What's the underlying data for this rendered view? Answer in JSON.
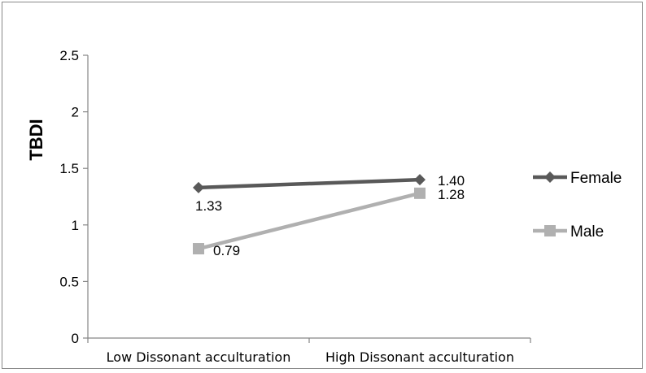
{
  "chart_data": {
    "type": "line",
    "title": "",
    "xlabel": "",
    "ylabel": "TBDI",
    "categories": [
      "Low Dissonant acculturation",
      "High Dissonant acculturation"
    ],
    "yticks": [
      "0",
      "0.5",
      "1",
      "1.5",
      "2",
      "2.5"
    ],
    "ylim": [
      0,
      2.5
    ],
    "grid": false,
    "legend_position": "right",
    "series": [
      {
        "name": "Female",
        "values": [
          1.33,
          1.4
        ],
        "labels": [
          "1.33",
          "1.40"
        ],
        "color": "#595959",
        "marker": "diamond"
      },
      {
        "name": "Male",
        "values": [
          0.79,
          1.28
        ],
        "labels": [
          "0.79",
          "1.28"
        ],
        "color": "#b0b0b0",
        "marker": "square"
      }
    ]
  }
}
